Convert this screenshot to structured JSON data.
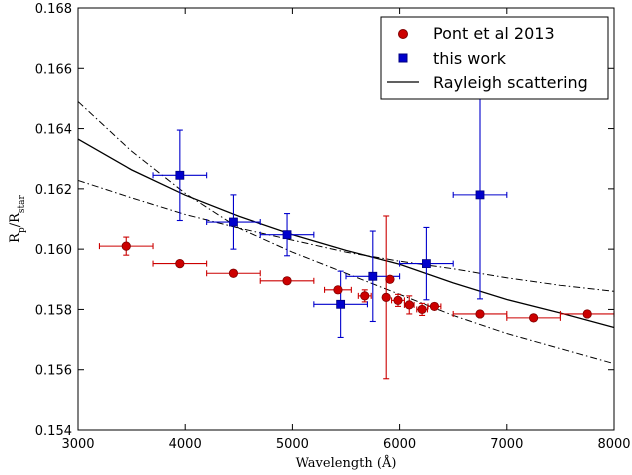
{
  "chart_data": {
    "type": "scatter",
    "xlabel": "Wavelength (Å)",
    "ylabel_main": "R",
    "ylabel_main_sub": "p",
    "ylabel_star": "R",
    "ylabel_star_sub": "star",
    "xlim": [
      3000,
      8000
    ],
    "ylim": [
      0.154,
      0.168
    ],
    "x_ticks": [
      3000,
      4000,
      5000,
      6000,
      7000,
      8000
    ],
    "x_tick_labels": [
      "3000",
      "4000",
      "5000",
      "6000",
      "7000",
      "8000"
    ],
    "y_ticks": [
      0.154,
      0.156,
      0.158,
      0.16,
      0.162,
      0.164,
      0.166,
      0.168
    ],
    "y_tick_labels": [
      "0.154",
      "0.156",
      "0.158",
      "0.160",
      "0.162",
      "0.164",
      "0.166",
      "0.168"
    ],
    "grid": false,
    "legend_position": "top-right",
    "series": [
      {
        "name": "Pont et al 2013",
        "marker": "circle",
        "color": "#cc0000",
        "edge_color": "#800000",
        "points": [
          {
            "x": 3450,
            "y": 0.1601,
            "xerr": 250,
            "yerr": 0.0003
          },
          {
            "x": 3950,
            "y": 0.15952,
            "xerr": 250,
            "yerr": 0.0001
          },
          {
            "x": 4450,
            "y": 0.1592,
            "xerr": 250,
            "yerr": 0.0001
          },
          {
            "x": 4950,
            "y": 0.15895,
            "xerr": 250,
            "yerr": 0.0001
          },
          {
            "x": 5425,
            "y": 0.15865,
            "xerr": 125,
            "yerr": 0.0001
          },
          {
            "x": 5675,
            "y": 0.15845,
            "xerr": 60,
            "yerr": 0.0002
          },
          {
            "x": 5875,
            "y": 0.1584,
            "xerr": 25,
            "yerr": 0.0027
          },
          {
            "x": 5910,
            "y": 0.159,
            "xerr": 15,
            "yerr": 0.0001
          },
          {
            "x": 5985,
            "y": 0.1583,
            "xerr": 60,
            "yerr": 0.0002
          },
          {
            "x": 6090,
            "y": 0.15815,
            "xerr": 45,
            "yerr": 0.0003
          },
          {
            "x": 6210,
            "y": 0.158,
            "xerr": 50,
            "yerr": 0.0002
          },
          {
            "x": 6325,
            "y": 0.1581,
            "xerr": 60,
            "yerr": 0.0001
          },
          {
            "x": 6750,
            "y": 0.15785,
            "xerr": 250,
            "yerr": 0.0001
          },
          {
            "x": 7250,
            "y": 0.15772,
            "xerr": 250,
            "yerr": 0.0001
          },
          {
            "x": 7750,
            "y": 0.15785,
            "xerr": 250,
            "yerr": 0.0001
          }
        ]
      },
      {
        "name": "this work",
        "marker": "square",
        "color": "#0000cc",
        "edge_color": "#000080",
        "points": [
          {
            "x": 3950,
            "y": 0.16245,
            "xerr": 250,
            "yerr": 0.0015
          },
          {
            "x": 4450,
            "y": 0.1609,
            "xerr": 250,
            "yerr": 0.0009
          },
          {
            "x": 4950,
            "y": 0.16048,
            "xerr": 250,
            "yerr": 0.0007
          },
          {
            "x": 5450,
            "y": 0.15817,
            "xerr": 250,
            "yerr": 0.0011
          },
          {
            "x": 5750,
            "y": 0.1591,
            "xerr": 250,
            "yerr": 0.0015
          },
          {
            "x": 6250,
            "y": 0.15952,
            "xerr": 250,
            "yerr": 0.0012
          },
          {
            "x": 6750,
            "y": 0.1618,
            "xerr": 250,
            "yerr": 0.00345
          }
        ]
      },
      {
        "name": "Rayleigh scattering",
        "type": "curve",
        "style": "solid",
        "color": "#000000",
        "points": [
          {
            "x": 3000,
            "y": 0.16365
          },
          {
            "x": 3500,
            "y": 0.16263
          },
          {
            "x": 4000,
            "y": 0.16179
          },
          {
            "x": 4500,
            "y": 0.16109
          },
          {
            "x": 5000,
            "y": 0.16048
          },
          {
            "x": 5500,
            "y": 0.15996
          },
          {
            "x": 6000,
            "y": 0.1595
          },
          {
            "x": 6500,
            "y": 0.15888
          },
          {
            "x": 7000,
            "y": 0.15833
          },
          {
            "x": 7500,
            "y": 0.15788
          },
          {
            "x": 8000,
            "y": 0.1574
          }
        ]
      },
      {
        "type": "curve",
        "style": "dash-dot",
        "color": "#000000",
        "points": [
          {
            "x": 3000,
            "y": 0.1649
          },
          {
            "x": 3500,
            "y": 0.16325
          },
          {
            "x": 4000,
            "y": 0.16185
          },
          {
            "x": 4500,
            "y": 0.1607
          },
          {
            "x": 5000,
            "y": 0.1599
          },
          {
            "x": 5500,
            "y": 0.1592
          },
          {
            "x": 6000,
            "y": 0.1585
          },
          {
            "x": 6500,
            "y": 0.1578
          },
          {
            "x": 7000,
            "y": 0.1572
          },
          {
            "x": 7500,
            "y": 0.1567
          },
          {
            "x": 8000,
            "y": 0.1562
          }
        ]
      },
      {
        "type": "curve",
        "style": "dash-dot",
        "color": "#000000",
        "points": [
          {
            "x": 3000,
            "y": 0.16228
          },
          {
            "x": 3500,
            "y": 0.1617
          },
          {
            "x": 4000,
            "y": 0.16115
          },
          {
            "x": 4500,
            "y": 0.1607
          },
          {
            "x": 5000,
            "y": 0.1603
          },
          {
            "x": 5500,
            "y": 0.1599
          },
          {
            "x": 6000,
            "y": 0.1596
          },
          {
            "x": 6500,
            "y": 0.15935
          },
          {
            "x": 7000,
            "y": 0.15905
          },
          {
            "x": 7500,
            "y": 0.1588
          },
          {
            "x": 8000,
            "y": 0.1586
          }
        ]
      }
    ]
  }
}
